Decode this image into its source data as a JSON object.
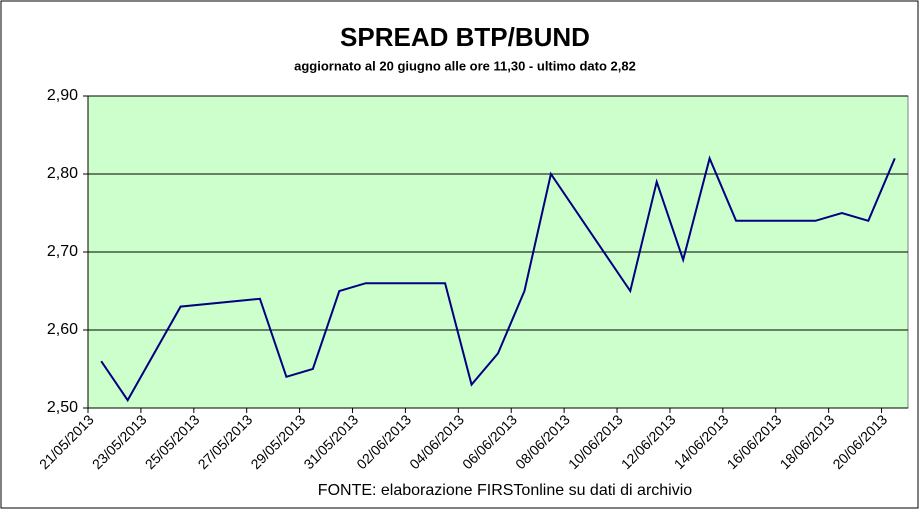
{
  "chart_data": {
    "type": "line",
    "title": "SPREAD  BTP/BUND",
    "subtitle": "aggiornato al 20 giugno alle ore 11,30 - ultimo dato 2,82",
    "source": "FONTE: elaborazione FIRSTonline su dati di archivio",
    "x": [
      "21/05/2013",
      "22/05/2013",
      "24/05/2013",
      "27/05/2013",
      "28/05/2013",
      "29/05/2013",
      "30/05/2013",
      "31/05/2013",
      "03/06/2013",
      "04/06/2013",
      "05/06/2013",
      "06/06/2013",
      "07/06/2013",
      "10/06/2013",
      "11/06/2013",
      "12/06/2013",
      "13/06/2013",
      "14/06/2013",
      "17/06/2013",
      "18/06/2013",
      "19/06/2013",
      "20/06/2013"
    ],
    "series": [
      {
        "color": "#000080",
        "values": [
          2.56,
          2.51,
          2.63,
          2.64,
          2.54,
          2.55,
          2.65,
          2.66,
          2.66,
          2.53,
          2.57,
          2.65,
          2.8,
          2.65,
          2.79,
          2.69,
          2.82,
          2.74,
          2.74,
          2.75,
          2.74,
          2.82
        ]
      }
    ],
    "xlim": [
      "21/05/2013",
      "21/06/2013"
    ],
    "xticks": [
      "21/05/2013",
      "23/05/2013",
      "25/05/2013",
      "27/05/2013",
      "29/05/2013",
      "31/05/2013",
      "02/06/2013",
      "04/06/2013",
      "06/06/2013",
      "08/06/2013",
      "10/06/2013",
      "12/06/2013",
      "14/06/2013",
      "16/06/2013",
      "18/06/2013",
      "20/06/2013"
    ],
    "ylim": [
      2.5,
      2.9
    ],
    "yticks": [
      {
        "value": 2.5,
        "label": "2,50"
      },
      {
        "value": 2.6,
        "label": "2,60"
      },
      {
        "value": 2.7,
        "label": "2,70"
      },
      {
        "value": 2.8,
        "label": "2,80"
      },
      {
        "value": 2.9,
        "label": "2,90"
      }
    ],
    "grid": true,
    "plot_background": "#ccffcc"
  }
}
